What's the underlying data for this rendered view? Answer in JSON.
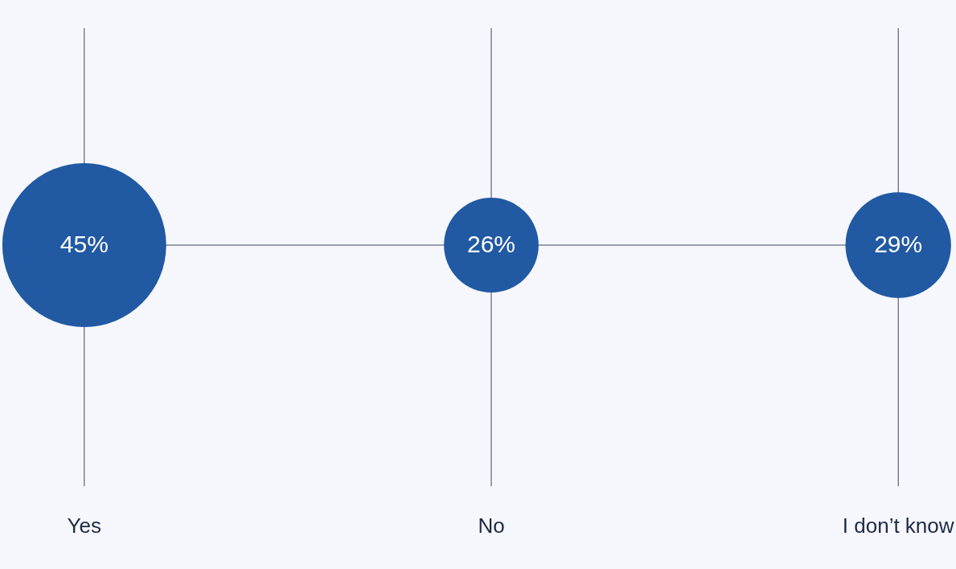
{
  "chart_data": {
    "type": "other",
    "categories": [
      "Yes",
      "No",
      "I don’t know"
    ],
    "values": [
      45,
      26,
      29
    ],
    "color": "#2159a3",
    "value_labels": [
      "45%",
      "26%",
      "29%"
    ]
  }
}
